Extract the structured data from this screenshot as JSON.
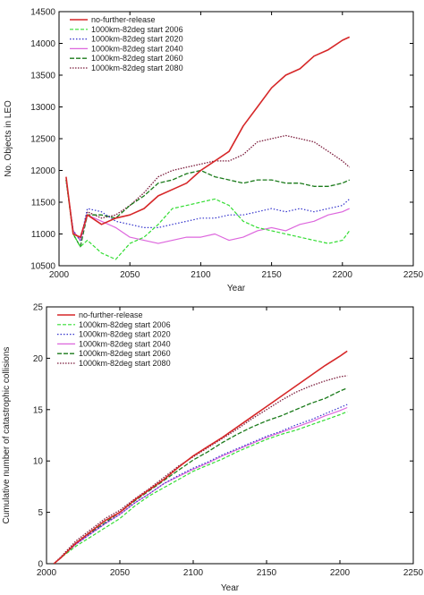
{
  "figure": {
    "colors": {
      "no_further_release": "#d62728",
      "start_2006": "#33dd33",
      "start_2020": "#3333cc",
      "start_2040": "#dd66dd",
      "start_2060": "#1a7a1a",
      "start_2080": "#7a1a3a"
    }
  },
  "chart_data": [
    {
      "type": "line",
      "title": "",
      "xlabel": "Year",
      "ylabel": "No. Objects in LEO",
      "xlim": [
        2000,
        2250
      ],
      "ylim": [
        10500,
        14500
      ],
      "xticks": [
        "2000",
        "2050",
        "2100",
        "2150",
        "2200",
        "2250"
      ],
      "yticks": [
        "10500",
        "11000",
        "11500",
        "12000",
        "12500",
        "13000",
        "13500",
        "14000",
        "14500"
      ],
      "grid": false,
      "legend_position": "top-left",
      "x": [
        2005,
        2010,
        2015,
        2020,
        2030,
        2040,
        2050,
        2060,
        2070,
        2080,
        2090,
        2100,
        2110,
        2120,
        2130,
        2140,
        2150,
        2160,
        2170,
        2180,
        2190,
        2200,
        2205
      ],
      "series": [
        {
          "name": "no-further-release",
          "color_key": "no_further_release",
          "dash": "solid",
          "width": 1.6,
          "values": [
            11900,
            11000,
            10950,
            11300,
            11150,
            11250,
            11300,
            11400,
            11600,
            11700,
            11800,
            12000,
            12150,
            12300,
            12700,
            13000,
            13300,
            13500,
            13600,
            13800,
            13900,
            14050,
            14100
          ]
        },
        {
          "name": "1000km-82deg start 2006",
          "color_key": "start_2006",
          "dash": "4,2",
          "width": 1.2,
          "values": [
            11850,
            11000,
            10800,
            10900,
            10700,
            10600,
            10850,
            10950,
            11150,
            11400,
            11450,
            11500,
            11550,
            11450,
            11200,
            11100,
            11050,
            11000,
            10950,
            10900,
            10850,
            10900,
            11050
          ]
        },
        {
          "name": "1000km-82deg start 2020",
          "color_key": "start_2020",
          "dash": "1.5,2",
          "width": 1.2,
          "values": [
            11850,
            11050,
            10900,
            11400,
            11350,
            11200,
            11150,
            11100,
            11100,
            11150,
            11200,
            11250,
            11250,
            11300,
            11300,
            11350,
            11400,
            11350,
            11400,
            11350,
            11400,
            11450,
            11550
          ]
        },
        {
          "name": "1000km-82deg start 2040",
          "color_key": "start_2040",
          "dash": "solid",
          "width": 1.2,
          "values": [
            11850,
            11050,
            10900,
            11300,
            11200,
            11100,
            10950,
            10900,
            10850,
            10900,
            10950,
            10950,
            11000,
            10900,
            10950,
            11050,
            11100,
            11050,
            11150,
            11200,
            11300,
            11350,
            11400
          ]
        },
        {
          "name": "1000km-82deg start 2060",
          "color_key": "start_2060",
          "dash": "5,2",
          "width": 1.3,
          "values": [
            11850,
            11000,
            10800,
            11300,
            11300,
            11250,
            11450,
            11600,
            11800,
            11850,
            11950,
            12000,
            11900,
            11850,
            11800,
            11850,
            11850,
            11800,
            11800,
            11750,
            11750,
            11800,
            11850
          ]
        },
        {
          "name": "1000km-82deg start 2080",
          "color_key": "start_2080",
          "dash": "1.5,1.5",
          "width": 1.3,
          "values": [
            11850,
            11050,
            10900,
            11350,
            11250,
            11300,
            11450,
            11650,
            11900,
            12000,
            12050,
            12100,
            12150,
            12150,
            12250,
            12450,
            12500,
            12550,
            12500,
            12450,
            12300,
            12150,
            12050
          ]
        }
      ]
    },
    {
      "type": "line",
      "title": "",
      "xlabel": "Year",
      "ylabel": "Cumulative number of catastrophic collisions",
      "xlim": [
        2000,
        2250
      ],
      "ylim": [
        0,
        25
      ],
      "xticks": [
        "2000",
        "2050",
        "2100",
        "2150",
        "2200",
        "2250"
      ],
      "yticks": [
        "0",
        "5",
        "10",
        "15",
        "20",
        "25"
      ],
      "grid": false,
      "legend_position": "top-left",
      "x": [
        2005,
        2010,
        2020,
        2030,
        2040,
        2050,
        2060,
        2070,
        2080,
        2090,
        2100,
        2110,
        2120,
        2130,
        2140,
        2150,
        2160,
        2170,
        2180,
        2190,
        2200,
        2205
      ],
      "series": [
        {
          "name": "no-further-release",
          "color_key": "no_further_release",
          "dash": "solid",
          "width": 1.6,
          "values": [
            0,
            0.6,
            2.0,
            3.1,
            4.2,
            5.0,
            6.2,
            7.2,
            8.2,
            9.4,
            10.5,
            11.4,
            12.3,
            13.3,
            14.3,
            15.3,
            16.3,
            17.3,
            18.3,
            19.3,
            20.2,
            20.7
          ]
        },
        {
          "name": "1000km-82deg start 2006",
          "color_key": "start_2006",
          "dash": "4,2",
          "width": 1.2,
          "values": [
            0,
            0.6,
            1.7,
            2.6,
            3.5,
            4.4,
            5.6,
            6.6,
            7.4,
            8.2,
            9.0,
            9.6,
            10.2,
            10.9,
            11.5,
            12.1,
            12.6,
            13.0,
            13.5,
            14.0,
            14.5,
            14.8
          ]
        },
        {
          "name": "1000km-82deg start 2020",
          "color_key": "start_2020",
          "dash": "1.5,2",
          "width": 1.2,
          "values": [
            0,
            0.6,
            1.9,
            2.9,
            3.9,
            4.8,
            5.9,
            6.8,
            7.8,
            8.6,
            9.3,
            9.9,
            10.6,
            11.2,
            11.8,
            12.4,
            12.9,
            13.5,
            14.0,
            14.6,
            15.2,
            15.5
          ]
        },
        {
          "name": "1000km-82deg start 2040",
          "color_key": "start_2040",
          "dash": "solid",
          "width": 1.2,
          "values": [
            0,
            0.6,
            1.9,
            2.9,
            3.9,
            4.8,
            5.9,
            6.8,
            7.8,
            8.5,
            9.2,
            9.8,
            10.5,
            11.1,
            11.7,
            12.3,
            12.8,
            13.3,
            13.8,
            14.4,
            14.9,
            15.2
          ]
        },
        {
          "name": "1000km-82deg start 2060",
          "color_key": "start_2060",
          "dash": "5,2",
          "width": 1.3,
          "values": [
            0,
            0.6,
            2.0,
            3.0,
            4.0,
            5.0,
            6.1,
            7.1,
            8.1,
            9.1,
            10.1,
            10.9,
            11.8,
            12.6,
            13.3,
            13.9,
            14.4,
            15.0,
            15.6,
            16.1,
            16.8,
            17.1
          ]
        },
        {
          "name": "1000km-82deg start 2080",
          "color_key": "start_2080",
          "dash": "1.5,1.5",
          "width": 1.3,
          "values": [
            0,
            0.7,
            2.2,
            3.3,
            4.4,
            5.2,
            6.3,
            7.3,
            8.4,
            9.5,
            10.4,
            11.3,
            12.2,
            13.1,
            14.1,
            15.0,
            15.9,
            16.7,
            17.3,
            17.8,
            18.2,
            18.3
          ]
        }
      ]
    }
  ]
}
